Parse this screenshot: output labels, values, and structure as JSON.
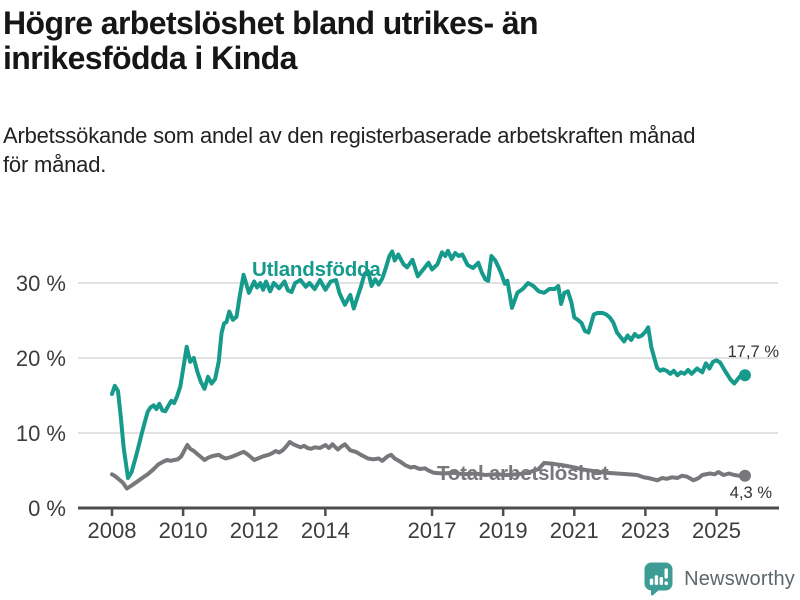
{
  "header": {
    "title_lines": [
      "Högre arbetslöshet bland utrikes- än",
      "inrikesfödda i Kinda"
    ],
    "subtitle_lines": [
      "Arbetssökande som andel av den registerbaserade arbetskraften månad",
      "för månad."
    ]
  },
  "footer": {
    "brand": "Newsworthy",
    "brand_icon": "speech-bubble-bar-chart",
    "brand_color": "#3d9c94",
    "brand_text_color": "#5d666b"
  },
  "chart_data": {
    "type": "line",
    "title": "Högre arbetslöshet bland utrikes- än inrikesfödda i Kinda",
    "subtitle": "Arbetssökande som andel av den registerbaserade arbetskraften månad för månad.",
    "unit": "percent of registered labour force",
    "grid": "horizontal-only",
    "legend_position": "inline-labels",
    "xlim": [
      2007.2,
      2026.7
    ],
    "ylim": [
      0,
      36
    ],
    "x_axis": {
      "tick_years": [
        2008,
        2010,
        2012,
        2014,
        2017,
        2019,
        2021,
        2023,
        2025
      ],
      "tick_labels": [
        "2008",
        "2010",
        "2012",
        "2014",
        "2017",
        "2019",
        "2021",
        "2023",
        "2025"
      ]
    },
    "y_axis": {
      "tick_values": [
        0,
        10,
        20,
        30
      ],
      "tick_labels": [
        "0 %",
        "10 %",
        "20 %",
        "30 %"
      ]
    },
    "colors": {
      "utlandsfodda": "#169a8c",
      "total": "#77787b",
      "gridline": "#d9d9d9",
      "axis": "#4d4d4d",
      "tick_text": "#3d3d3d",
      "value_text": "#333333"
    },
    "series": [
      {
        "id": "utlandsfodda",
        "name": "Utlandsfödda",
        "color": "#169a8c",
        "end_label": "17,7 %",
        "end_value": 17.7,
        "points": [
          [
            2008.0,
            15.2
          ],
          [
            2008.08,
            16.3
          ],
          [
            2008.17,
            15.6
          ],
          [
            2008.25,
            12.0
          ],
          [
            2008.33,
            8.0
          ],
          [
            2008.45,
            4.0
          ],
          [
            2008.55,
            4.8
          ],
          [
            2008.67,
            6.8
          ],
          [
            2008.75,
            8.3
          ],
          [
            2008.83,
            9.8
          ],
          [
            2008.92,
            11.4
          ],
          [
            2009.0,
            12.8
          ],
          [
            2009.08,
            13.4
          ],
          [
            2009.17,
            13.7
          ],
          [
            2009.25,
            13.2
          ],
          [
            2009.33,
            13.9
          ],
          [
            2009.42,
            13.0
          ],
          [
            2009.5,
            12.9
          ],
          [
            2009.58,
            13.6
          ],
          [
            2009.67,
            14.3
          ],
          [
            2009.75,
            14.0
          ],
          [
            2009.83,
            14.9
          ],
          [
            2009.92,
            16.2
          ],
          [
            2010.0,
            18.5
          ],
          [
            2010.1,
            21.5
          ],
          [
            2010.2,
            19.5
          ],
          [
            2010.3,
            20.0
          ],
          [
            2010.4,
            18.2
          ],
          [
            2010.5,
            16.8
          ],
          [
            2010.6,
            15.9
          ],
          [
            2010.7,
            17.5
          ],
          [
            2010.8,
            16.6
          ],
          [
            2010.9,
            17.2
          ],
          [
            2011.0,
            19.5
          ],
          [
            2011.08,
            23.3
          ],
          [
            2011.15,
            24.6
          ],
          [
            2011.22,
            24.8
          ],
          [
            2011.3,
            26.2
          ],
          [
            2011.4,
            25.1
          ],
          [
            2011.5,
            25.5
          ],
          [
            2011.6,
            28.5
          ],
          [
            2011.7,
            31.1
          ],
          [
            2011.85,
            28.7
          ],
          [
            2012.0,
            30.2
          ],
          [
            2012.08,
            29.4
          ],
          [
            2012.17,
            30.0
          ],
          [
            2012.25,
            29.1
          ],
          [
            2012.33,
            30.2
          ],
          [
            2012.45,
            28.9
          ],
          [
            2012.55,
            30.0
          ],
          [
            2012.7,
            29.3
          ],
          [
            2012.85,
            30.2
          ],
          [
            2012.95,
            29.0
          ],
          [
            2013.05,
            28.8
          ],
          [
            2013.15,
            30.0
          ],
          [
            2013.3,
            30.4
          ],
          [
            2013.45,
            29.5
          ],
          [
            2013.55,
            30.0
          ],
          [
            2013.7,
            29.2
          ],
          [
            2013.85,
            30.4
          ],
          [
            2014.0,
            29.1
          ],
          [
            2014.15,
            30.2
          ],
          [
            2014.3,
            30.4
          ],
          [
            2014.4,
            28.6
          ],
          [
            2014.55,
            27.1
          ],
          [
            2014.7,
            28.4
          ],
          [
            2014.8,
            26.6
          ],
          [
            2014.9,
            28.1
          ],
          [
            2015.0,
            29.5
          ],
          [
            2015.1,
            31.2
          ],
          [
            2015.2,
            31.6
          ],
          [
            2015.3,
            29.6
          ],
          [
            2015.4,
            30.5
          ],
          [
            2015.5,
            29.8
          ],
          [
            2015.6,
            30.6
          ],
          [
            2015.7,
            32.0
          ],
          [
            2015.8,
            33.6
          ],
          [
            2015.88,
            34.2
          ],
          [
            2015.95,
            33.0
          ],
          [
            2016.05,
            33.8
          ],
          [
            2016.2,
            32.5
          ],
          [
            2016.3,
            32.1
          ],
          [
            2016.45,
            33.1
          ],
          [
            2016.6,
            30.9
          ],
          [
            2016.75,
            31.8
          ],
          [
            2016.9,
            32.7
          ],
          [
            2017.0,
            31.8
          ],
          [
            2017.15,
            32.5
          ],
          [
            2017.28,
            34.1
          ],
          [
            2017.37,
            33.6
          ],
          [
            2017.45,
            34.3
          ],
          [
            2017.55,
            33.2
          ],
          [
            2017.65,
            34.0
          ],
          [
            2017.75,
            33.6
          ],
          [
            2017.85,
            33.8
          ],
          [
            2018.0,
            32.4
          ],
          [
            2018.15,
            32.0
          ],
          [
            2018.3,
            32.7
          ],
          [
            2018.4,
            31.4
          ],
          [
            2018.5,
            30.5
          ],
          [
            2018.58,
            30.3
          ],
          [
            2018.67,
            33.6
          ],
          [
            2018.78,
            33.0
          ],
          [
            2018.88,
            32.0
          ],
          [
            2018.95,
            31.2
          ],
          [
            2019.05,
            29.9
          ],
          [
            2019.12,
            30.3
          ],
          [
            2019.25,
            26.7
          ],
          [
            2019.4,
            28.7
          ],
          [
            2019.55,
            29.2
          ],
          [
            2019.7,
            30.0
          ],
          [
            2019.85,
            29.6
          ],
          [
            2020.0,
            28.9
          ],
          [
            2020.15,
            28.7
          ],
          [
            2020.3,
            29.2
          ],
          [
            2020.45,
            29.2
          ],
          [
            2020.55,
            29.6
          ],
          [
            2020.63,
            27.2
          ],
          [
            2020.72,
            28.7
          ],
          [
            2020.82,
            28.9
          ],
          [
            2020.92,
            27.4
          ],
          [
            2021.0,
            25.4
          ],
          [
            2021.1,
            25.1
          ],
          [
            2021.2,
            24.7
          ],
          [
            2021.3,
            23.6
          ],
          [
            2021.4,
            23.4
          ],
          [
            2021.55,
            25.8
          ],
          [
            2021.65,
            26.0
          ],
          [
            2021.8,
            26.0
          ],
          [
            2021.9,
            25.8
          ],
          [
            2022.0,
            25.4
          ],
          [
            2022.1,
            24.7
          ],
          [
            2022.2,
            23.4
          ],
          [
            2022.3,
            22.8
          ],
          [
            2022.4,
            22.2
          ],
          [
            2022.5,
            23.0
          ],
          [
            2022.6,
            22.4
          ],
          [
            2022.7,
            23.2
          ],
          [
            2022.8,
            22.8
          ],
          [
            2022.9,
            23.0
          ],
          [
            2023.0,
            23.5
          ],
          [
            2023.08,
            24.1
          ],
          [
            2023.17,
            21.4
          ],
          [
            2023.25,
            20.0
          ],
          [
            2023.33,
            18.7
          ],
          [
            2023.42,
            18.3
          ],
          [
            2023.5,
            18.5
          ],
          [
            2023.6,
            18.3
          ],
          [
            2023.7,
            17.9
          ],
          [
            2023.8,
            18.3
          ],
          [
            2023.9,
            17.7
          ],
          [
            2024.0,
            18.1
          ],
          [
            2024.1,
            17.9
          ],
          [
            2024.2,
            18.4
          ],
          [
            2024.3,
            17.9
          ],
          [
            2024.45,
            18.6
          ],
          [
            2024.6,
            18.1
          ],
          [
            2024.7,
            19.3
          ],
          [
            2024.8,
            18.6
          ],
          [
            2024.9,
            19.5
          ],
          [
            2025.0,
            19.7
          ],
          [
            2025.1,
            19.4
          ],
          [
            2025.25,
            18.2
          ],
          [
            2025.4,
            17.1
          ],
          [
            2025.5,
            16.6
          ],
          [
            2025.65,
            17.5
          ],
          [
            2025.8,
            17.7
          ]
        ]
      },
      {
        "id": "total",
        "name": "Total arbetslöshet",
        "color": "#77787b",
        "end_label": "4,3 %",
        "end_value": 4.3,
        "points": [
          [
            2008.0,
            4.5
          ],
          [
            2008.1,
            4.2
          ],
          [
            2008.2,
            3.8
          ],
          [
            2008.3,
            3.4
          ],
          [
            2008.42,
            2.6
          ],
          [
            2008.55,
            3.0
          ],
          [
            2008.7,
            3.5
          ],
          [
            2008.85,
            4.0
          ],
          [
            2009.0,
            4.5
          ],
          [
            2009.15,
            5.1
          ],
          [
            2009.3,
            5.8
          ],
          [
            2009.45,
            6.2
          ],
          [
            2009.55,
            6.4
          ],
          [
            2009.65,
            6.3
          ],
          [
            2009.75,
            6.4
          ],
          [
            2009.85,
            6.5
          ],
          [
            2009.95,
            6.9
          ],
          [
            2010.05,
            7.8
          ],
          [
            2010.12,
            8.4
          ],
          [
            2010.2,
            7.9
          ],
          [
            2010.3,
            7.6
          ],
          [
            2010.4,
            7.2
          ],
          [
            2010.5,
            6.8
          ],
          [
            2010.6,
            6.4
          ],
          [
            2010.7,
            6.7
          ],
          [
            2010.8,
            6.9
          ],
          [
            2010.9,
            7.0
          ],
          [
            2011.0,
            7.1
          ],
          [
            2011.1,
            6.8
          ],
          [
            2011.2,
            6.6
          ],
          [
            2011.35,
            6.8
          ],
          [
            2011.5,
            7.1
          ],
          [
            2011.6,
            7.3
          ],
          [
            2011.7,
            7.5
          ],
          [
            2011.8,
            7.2
          ],
          [
            2011.9,
            6.8
          ],
          [
            2012.0,
            6.4
          ],
          [
            2012.1,
            6.6
          ],
          [
            2012.25,
            6.9
          ],
          [
            2012.4,
            7.1
          ],
          [
            2012.5,
            7.3
          ],
          [
            2012.6,
            7.6
          ],
          [
            2012.7,
            7.4
          ],
          [
            2012.8,
            7.7
          ],
          [
            2012.9,
            8.2
          ],
          [
            2013.0,
            8.8
          ],
          [
            2013.1,
            8.5
          ],
          [
            2013.2,
            8.3
          ],
          [
            2013.3,
            8.1
          ],
          [
            2013.4,
            8.3
          ],
          [
            2013.5,
            8.0
          ],
          [
            2013.6,
            7.9
          ],
          [
            2013.7,
            8.1
          ],
          [
            2013.85,
            8.0
          ],
          [
            2014.0,
            8.4
          ],
          [
            2014.1,
            8.0
          ],
          [
            2014.2,
            8.5
          ],
          [
            2014.35,
            7.8
          ],
          [
            2014.45,
            8.2
          ],
          [
            2014.55,
            8.5
          ],
          [
            2014.7,
            7.7
          ],
          [
            2014.85,
            7.5
          ],
          [
            2015.0,
            7.1
          ],
          [
            2015.2,
            6.6
          ],
          [
            2015.35,
            6.5
          ],
          [
            2015.5,
            6.6
          ],
          [
            2015.6,
            6.3
          ],
          [
            2015.75,
            6.9
          ],
          [
            2015.85,
            7.1
          ],
          [
            2015.95,
            6.6
          ],
          [
            2016.1,
            6.2
          ],
          [
            2016.25,
            5.7
          ],
          [
            2016.4,
            5.4
          ],
          [
            2016.5,
            5.5
          ],
          [
            2016.65,
            5.2
          ],
          [
            2016.8,
            5.3
          ],
          [
            2016.9,
            5.0
          ],
          [
            2017.05,
            4.7
          ],
          [
            2017.3,
            4.6
          ],
          [
            2017.6,
            4.7
          ],
          [
            2017.9,
            4.5
          ],
          [
            2018.2,
            4.6
          ],
          [
            2018.5,
            4.4
          ],
          [
            2018.8,
            4.5
          ],
          [
            2019.1,
            4.4
          ],
          [
            2019.4,
            4.5
          ],
          [
            2019.7,
            4.7
          ],
          [
            2020.0,
            5.2
          ],
          [
            2020.15,
            6.0
          ],
          [
            2020.4,
            5.9
          ],
          [
            2020.7,
            5.7
          ],
          [
            2021.0,
            5.4
          ],
          [
            2021.3,
            5.1
          ],
          [
            2021.6,
            4.9
          ],
          [
            2021.9,
            4.7
          ],
          [
            2022.2,
            4.6
          ],
          [
            2022.5,
            4.5
          ],
          [
            2022.77,
            4.4
          ],
          [
            2022.95,
            4.1
          ],
          [
            2023.08,
            4.0
          ],
          [
            2023.34,
            3.7
          ],
          [
            2023.47,
            4.0
          ],
          [
            2023.6,
            3.9
          ],
          [
            2023.75,
            4.1
          ],
          [
            2023.9,
            4.0
          ],
          [
            2024.03,
            4.3
          ],
          [
            2024.16,
            4.2
          ],
          [
            2024.35,
            3.7
          ],
          [
            2024.5,
            4.0
          ],
          [
            2024.6,
            4.4
          ],
          [
            2024.82,
            4.6
          ],
          [
            2024.95,
            4.5
          ],
          [
            2025.05,
            4.8
          ],
          [
            2025.2,
            4.4
          ],
          [
            2025.35,
            4.6
          ],
          [
            2025.5,
            4.4
          ],
          [
            2025.65,
            4.3
          ],
          [
            2025.8,
            4.3
          ]
        ]
      }
    ]
  }
}
